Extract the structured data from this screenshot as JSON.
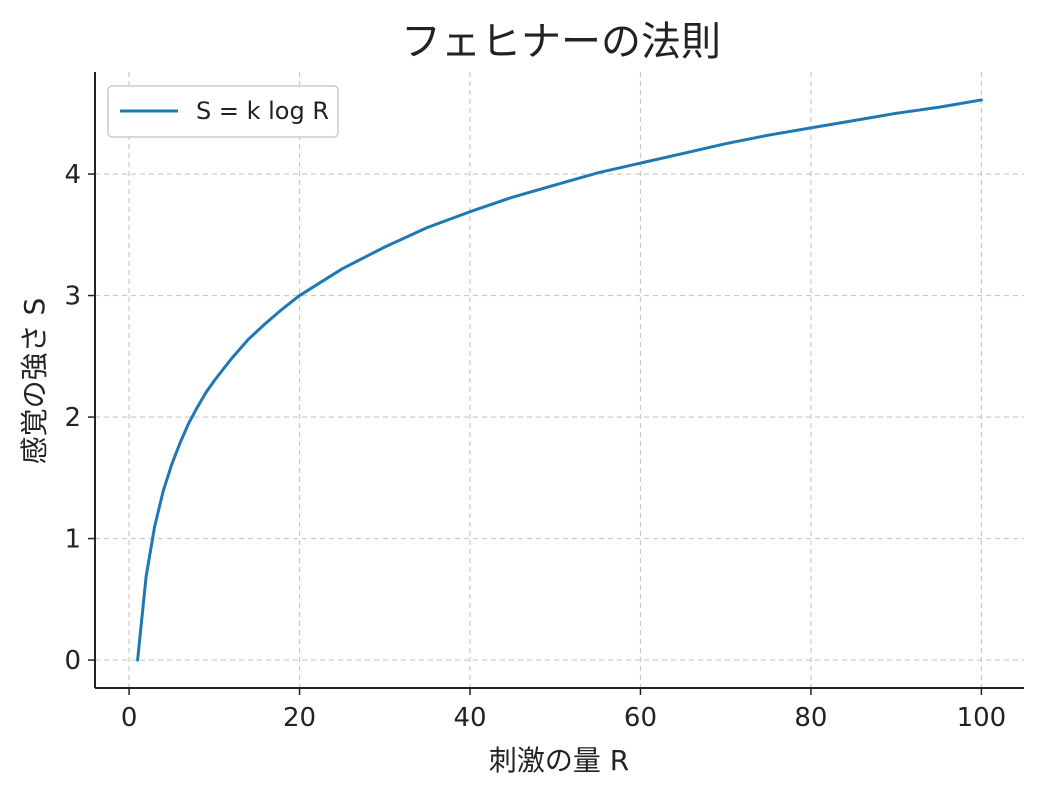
{
  "chart_data": {
    "type": "line",
    "title": "フェヒナーの法則",
    "xlabel": "刺激の量 R",
    "ylabel": "感覚の強さ S",
    "xlim": [
      -4,
      105
    ],
    "ylim": [
      -0.23,
      4.84
    ],
    "xticks": [
      0,
      20,
      40,
      60,
      80,
      100
    ],
    "yticks": [
      0,
      1,
      2,
      3,
      4
    ],
    "grid": true,
    "legend_position": "top-left",
    "colors": {
      "series": "#1f77b4",
      "grid": "#c8c8c8",
      "axis": "#222222"
    },
    "series": [
      {
        "name": "S = k log R",
        "x": [
          1,
          2,
          3,
          4,
          5,
          6,
          7,
          8,
          9,
          10,
          12,
          14,
          16,
          18,
          20,
          25,
          30,
          35,
          40,
          45,
          50,
          55,
          60,
          65,
          70,
          75,
          80,
          85,
          90,
          95,
          100
        ],
        "y": [
          0,
          0.69,
          1.1,
          1.39,
          1.61,
          1.79,
          1.95,
          2.08,
          2.2,
          2.3,
          2.48,
          2.64,
          2.77,
          2.89,
          3.0,
          3.22,
          3.4,
          3.56,
          3.69,
          3.81,
          3.91,
          4.01,
          4.09,
          4.17,
          4.25,
          4.32,
          4.38,
          4.44,
          4.5,
          4.55,
          4.61
        ]
      }
    ]
  }
}
